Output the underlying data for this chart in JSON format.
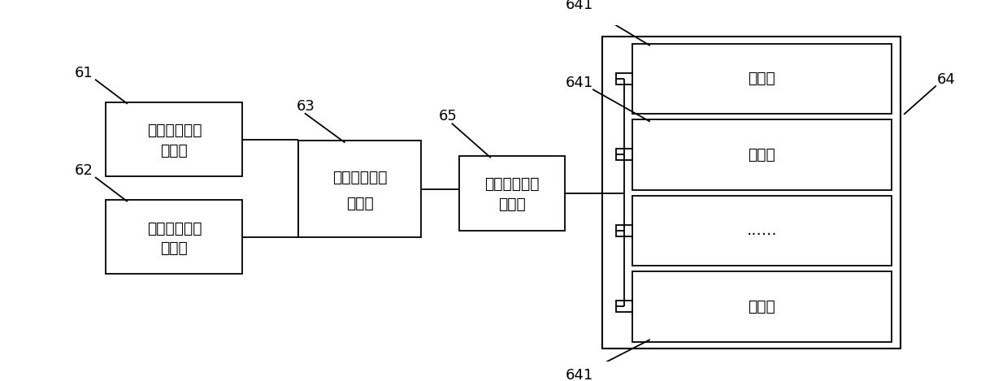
{
  "bg_color": "#ffffff",
  "line_color": "#000000",
  "label_61": "61",
  "label_62": "62",
  "label_63": "63",
  "label_64": "64",
  "label_65": "65",
  "label_641a": "641",
  "label_641b": "641",
  "label_641c": "641",
  "box1_lines": [
    "打印部件位置",
    "传感器"
  ],
  "box2_lines": [
    "打印部件质量",
    "传感器"
  ],
  "box3_lines": [
    "打印部件自稳",
    "定系统"
  ],
  "box4_lines": [
    "电磁铁阵列控",
    "制模块"
  ],
  "em1_text": "电磁铁",
  "em2_text": "电磁铁",
  "em3_text": "......",
  "em4_text": "电磁铁",
  "outer_box_label": "64",
  "figw": 12.39,
  "figh": 4.69,
  "dpi": 100
}
